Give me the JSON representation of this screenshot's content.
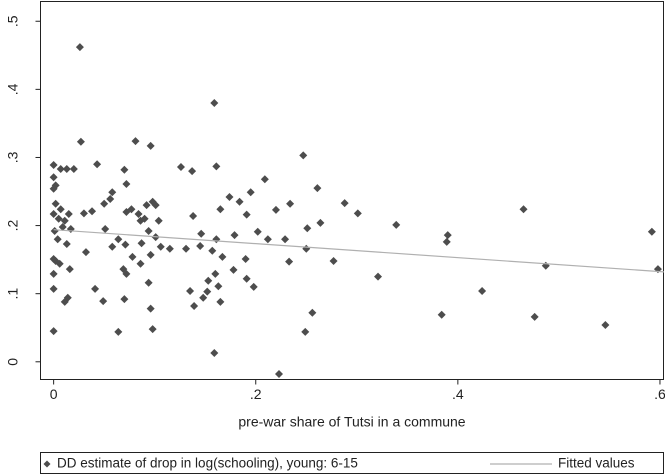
{
  "chart_data": {
    "type": "scatter",
    "x_label": "pre-war share of Tutsi in a commune",
    "xlim": [
      -0.013,
      0.604
    ],
    "ylim": [
      -0.026,
      0.529
    ],
    "xticks": [
      0,
      {
        "value": 0.2,
        "label": ".2"
      },
      {
        "value": 0.4,
        "label": ".4"
      },
      {
        "value": 0.6,
        "label": ".6"
      }
    ],
    "yticks": [
      0,
      {
        "value": 0.1,
        "label": ".1"
      },
      {
        "value": 0.2,
        "label": ".2"
      },
      {
        "value": 0.3,
        "label": ".3"
      },
      {
        "value": 0.4,
        "label": ".4"
      },
      {
        "value": 0.5,
        "label": ".5"
      }
    ],
    "grid": false,
    "legend": "bottom",
    "series": [
      {
        "name": "DD estimate of drop in log(schooling), young: 6-15",
        "style": "markers",
        "color": "#4d4d4d",
        "x": [
          0.026,
          0.159,
          0.027,
          0.081,
          0.096,
          0.247,
          0,
          0.007,
          0.013,
          0.02,
          0.043,
          0.07,
          0.126,
          0.137,
          0.161,
          0,
          0.002,
          0,
          0.209,
          0.072,
          0.174,
          0.184,
          0.195,
          0.261,
          0.288,
          0.234,
          0.301,
          0.339,
          0.165,
          0.191,
          0.22,
          0.264,
          0.465,
          0.592,
          0.251,
          0.002,
          0.007,
          0,
          0.005,
          0.011,
          0.015,
          0.009,
          0.001,
          0.004,
          0.013,
          0.017,
          0.03,
          0.038,
          0.05,
          0.056,
          0.058,
          0.072,
          0.077,
          0.084,
          0.086,
          0.09,
          0.092,
          0.101,
          0.098,
          0.094,
          0.101,
          0.104,
          0.051,
          0.058,
          0.064,
          0.071,
          0.069,
          0.087,
          0.078,
          0.096,
          0.106,
          0.115,
          0.131,
          0.145,
          0.138,
          0.146,
          0.161,
          0.157,
          0.167,
          0.179,
          0.19,
          0.202,
          0.212,
          0.229,
          0.233,
          0.25,
          0.277,
          0.321,
          0.39,
          0.389,
          0,
          0.002,
          0.006,
          0,
          0,
          0.011,
          0.014,
          0.016,
          0.032,
          0.041,
          0.049,
          0.07,
          0.072,
          0.086,
          0.094,
          0.096,
          0.098,
          0.064,
          0.135,
          0.139,
          0.148,
          0.152,
          0.153,
          0.16,
          0.163,
          0.178,
          0.191,
          0.198,
          0.165,
          0.249,
          0.256,
          0.384,
          0.424,
          0.487,
          0.476,
          0.546,
          0.598,
          0,
          0.159,
          0.223
        ],
        "values": [
          0.462,
          0.38,
          0.323,
          0.324,
          0.317,
          0.303,
          0.289,
          0.283,
          0.283,
          0.283,
          0.29,
          0.282,
          0.286,
          0.28,
          0.287,
          0.271,
          0.259,
          0.254,
          0.268,
          0.261,
          0.242,
          0.235,
          0.249,
          0.255,
          0.233,
          0.232,
          0.218,
          0.201,
          0.224,
          0.216,
          0.223,
          0.204,
          0.224,
          0.191,
          0.196,
          0.232,
          0.224,
          0.217,
          0.21,
          0.207,
          0.217,
          0.198,
          0.192,
          0.18,
          0.173,
          0.195,
          0.218,
          0.221,
          0.232,
          0.239,
          0.249,
          0.22,
          0.224,
          0.217,
          0.207,
          0.21,
          0.23,
          0.23,
          0.235,
          0.192,
          0.183,
          0.207,
          0.195,
          0.169,
          0.18,
          0.172,
          0.136,
          0.174,
          0.154,
          0.157,
          0.169,
          0.166,
          0.166,
          0.17,
          0.214,
          0.188,
          0.18,
          0.163,
          0.154,
          0.186,
          0.151,
          0.191,
          0.18,
          0.18,
          0.147,
          0.166,
          0.148,
          0.125,
          0.186,
          0.176,
          0.151,
          0.148,
          0.144,
          0.129,
          0.107,
          0.088,
          0.094,
          0.136,
          0.161,
          0.107,
          0.089,
          0.092,
          0.129,
          0.144,
          0.116,
          0.078,
          0.048,
          0.044,
          0.104,
          0.082,
          0.094,
          0.103,
          0.119,
          0.129,
          0.111,
          0.135,
          0.122,
          0.11,
          0.088,
          0.044,
          0.072,
          0.069,
          0.104,
          0.141,
          0.066,
          0.054,
          0.136,
          0.045,
          0.013,
          -0.018
        ]
      },
      {
        "name": "Fitted values",
        "style": "line",
        "color": "#b0b0b0",
        "x": [
          0,
          0.604
        ],
        "values": [
          0.194,
          0.132
        ]
      }
    ]
  }
}
